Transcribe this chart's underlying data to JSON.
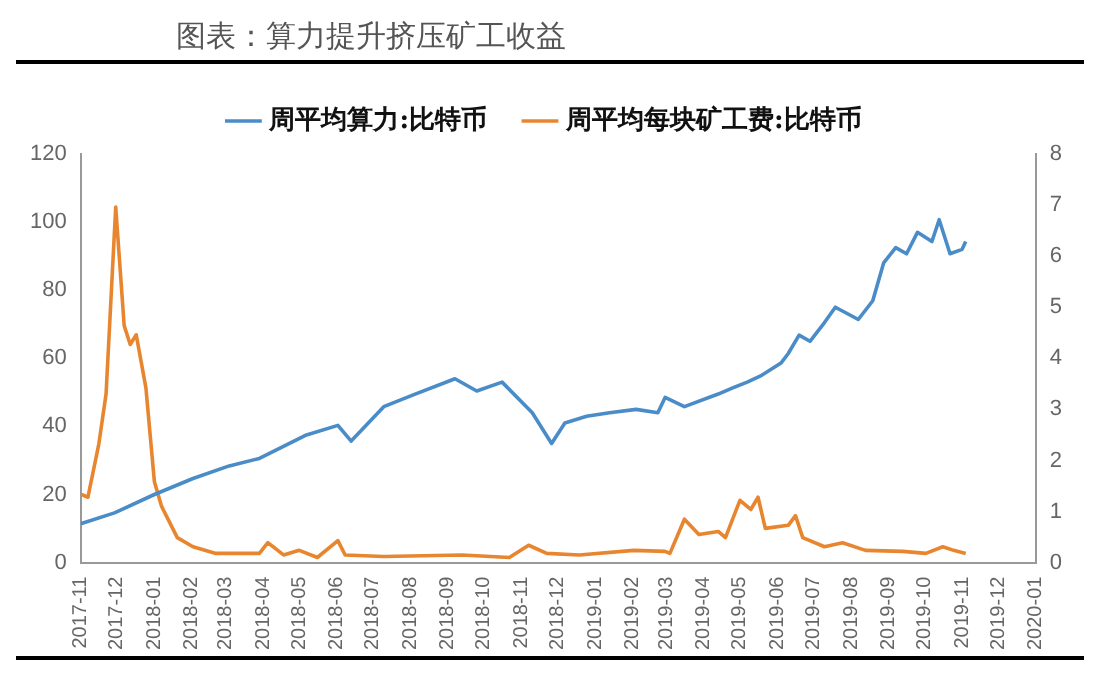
{
  "chart_data": {
    "type": "line",
    "title": "图表：算力提升挤压矿工收益",
    "series": [
      {
        "name": "周平均算力:比特币",
        "color": "#4a8cc8",
        "axis": "y",
        "x": [
          "2017-11-01",
          "2017-11-29",
          "2018-01-01",
          "2018-02-02",
          "2018-03-04",
          "2018-03-29",
          "2018-05-07",
          "2018-06-02",
          "2018-06-13",
          "2018-07-10",
          "2018-08-05",
          "2018-09-07",
          "2018-09-25",
          "2018-10-16",
          "2018-11-10",
          "2018-11-26",
          "2018-12-07",
          "2018-12-25",
          "2019-01-13",
          "2019-02-04",
          "2019-02-22",
          "2019-02-28",
          "2019-03-16",
          "2019-04-13",
          "2019-04-25",
          "2019-05-07",
          "2019-05-19",
          "2019-06-04",
          "2019-06-10",
          "2019-06-19",
          "2019-06-28",
          "2019-07-10",
          "2019-07-19",
          "2019-07-28",
          "2019-08-07",
          "2019-08-19",
          "2019-08-28",
          "2019-09-07",
          "2019-09-16",
          "2019-09-25",
          "2019-10-07",
          "2019-10-13",
          "2019-10-22",
          "2019-11-01",
          "2019-11-04"
        ],
        "values": [
          11.4,
          14.6,
          20,
          24.7,
          28.4,
          30.6,
          37.5,
          40.3,
          35.7,
          45.8,
          49.5,
          54,
          50.4,
          53,
          44,
          35,
          41,
          43,
          44,
          45,
          44,
          48.5,
          45.8,
          49.5,
          51.3,
          53,
          55,
          58.6,
          61.4,
          66.8,
          65,
          70.5,
          75,
          73.3,
          71.4,
          76.9,
          88,
          92.5,
          90.7,
          97,
          94.3,
          100.7,
          90.7,
          92,
          94.3
        ]
      },
      {
        "name": "周平均每块矿工费:比特币",
        "color": "#e8862f",
        "axis": "y2",
        "x": [
          "2017-11-01",
          "2017-11-07",
          "2017-11-16",
          "2017-11-22",
          "2017-11-30",
          "2017-12-07",
          "2017-12-12",
          "2017-12-17",
          "2017-12-25",
          "2018-01-01",
          "2018-01-07",
          "2018-01-20",
          "2018-02-02",
          "2018-02-21",
          "2018-03-29",
          "2018-04-05",
          "2018-04-18",
          "2018-05-01",
          "2018-05-16",
          "2018-06-02",
          "2018-06-08",
          "2018-07-10",
          "2018-09-13",
          "2018-10-22",
          "2018-11-07",
          "2018-11-22",
          "2018-12-19",
          "2019-02-02",
          "2019-02-28",
          "2019-03-04",
          "2019-03-16",
          "2019-03-28",
          "2019-04-13",
          "2019-04-19",
          "2019-05-01",
          "2019-05-10",
          "2019-05-16",
          "2019-05-22",
          "2019-06-10",
          "2019-06-16",
          "2019-06-22",
          "2019-07-10",
          "2019-07-25",
          "2019-08-13",
          "2019-09-13",
          "2019-10-02",
          "2019-10-16",
          "2019-10-25",
          "2019-11-04"
        ],
        "values": [
          1.34,
          1.28,
          2.32,
          3.3,
          6.96,
          4.64,
          4.27,
          4.46,
          3.42,
          1.59,
          1.1,
          0.49,
          0.31,
          0.18,
          0.18,
          0.39,
          0.15,
          0.24,
          0.1,
          0.43,
          0.15,
          0.12,
          0.15,
          0.1,
          0.34,
          0.18,
          0.15,
          0.24,
          0.22,
          0.18,
          0.85,
          0.55,
          0.61,
          0.49,
          1.22,
          1.04,
          1.28,
          0.67,
          0.73,
          0.92,
          0.49,
          0.31,
          0.39,
          0.24,
          0.22,
          0.18,
          0.31,
          0.24,
          0.18
        ]
      }
    ],
    "xlim": [
      "2017-11",
      "2020-01"
    ],
    "xticks": [
      "2017-11",
      "2017-12",
      "2018-01",
      "2018-02",
      "2018-03",
      "2018-04",
      "2018-05",
      "2018-06",
      "2018-07",
      "2018-08",
      "2018-09",
      "2018-10",
      "2018-11",
      "2018-12",
      "2019-01",
      "2019-02",
      "2019-03",
      "2019-04",
      "2019-05",
      "2019-06",
      "2019-07",
      "2019-08",
      "2019-09",
      "2019-10",
      "2019-11",
      "2019-12",
      "2020-01"
    ],
    "ylim": [
      0,
      120
    ],
    "yticks": [
      0,
      20,
      40,
      60,
      80,
      100,
      120
    ],
    "y2lim": [
      0,
      8
    ],
    "y2ticks": [
      0,
      1,
      2,
      3,
      4,
      5,
      6,
      7,
      8
    ],
    "legend": "top",
    "grid": false,
    "marker": "none",
    "line_style": "solid"
  }
}
